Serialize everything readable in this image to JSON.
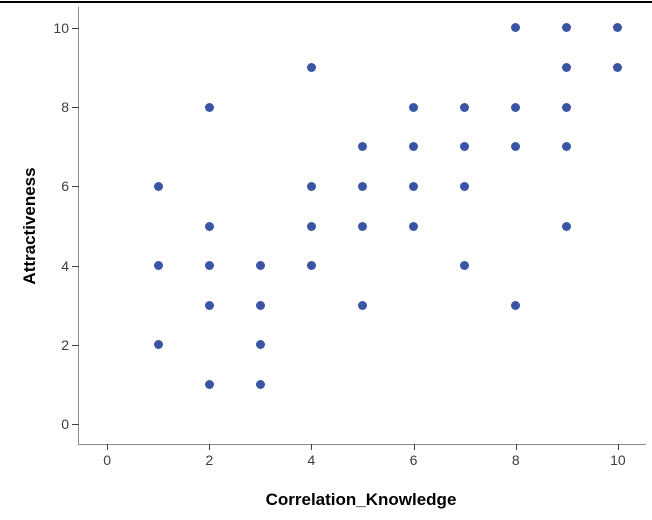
{
  "chart_data": {
    "type": "scatter",
    "title": "",
    "xlabel": "Correlation_Knowledge",
    "ylabel": "Attractiveness",
    "x_ticks": [
      0,
      2,
      4,
      6,
      8,
      10
    ],
    "y_ticks": [
      0,
      2,
      4,
      6,
      8,
      10
    ],
    "xlim": [
      -0.55,
      10.55
    ],
    "ylim": [
      -0.5,
      10.53
    ],
    "grid": false,
    "legend_position": "none",
    "marker_color": "#3B55A6",
    "marker_diameter_px": 9,
    "axis_line_color": "#8c8c8c",
    "tick_color": "#3f3f3f",
    "tick_label_color": "#3d3d3d",
    "points": [
      [
        1,
        2
      ],
      [
        1,
        4
      ],
      [
        1,
        6
      ],
      [
        2,
        1
      ],
      [
        2,
        3
      ],
      [
        2,
        4
      ],
      [
        2,
        5
      ],
      [
        2,
        8
      ],
      [
        3,
        1
      ],
      [
        3,
        2
      ],
      [
        3,
        3
      ],
      [
        3,
        4
      ],
      [
        4,
        4
      ],
      [
        4,
        5
      ],
      [
        4,
        6
      ],
      [
        4,
        9
      ],
      [
        5,
        3
      ],
      [
        5,
        5
      ],
      [
        5,
        6
      ],
      [
        5,
        7
      ],
      [
        6,
        5
      ],
      [
        6,
        6
      ],
      [
        6,
        7
      ],
      [
        6,
        8
      ],
      [
        7,
        4
      ],
      [
        7,
        6
      ],
      [
        7,
        7
      ],
      [
        7,
        8
      ],
      [
        8,
        3
      ],
      [
        8,
        7
      ],
      [
        8,
        8
      ],
      [
        8,
        10
      ],
      [
        9,
        5
      ],
      [
        9,
        7
      ],
      [
        9,
        8
      ],
      [
        9,
        9
      ],
      [
        9,
        10
      ],
      [
        10,
        9
      ],
      [
        10,
        10
      ]
    ]
  },
  "frame": {
    "top_border_color": "#000000"
  }
}
